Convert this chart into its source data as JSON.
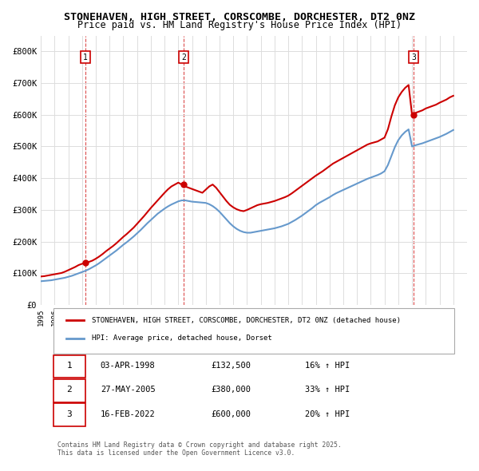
{
  "title": "STONEHAVEN, HIGH STREET, CORSCOMBE, DORCHESTER, DT2 0NZ",
  "subtitle": "Price paid vs. HM Land Registry's House Price Index (HPI)",
  "ylabel": "",
  "xlim_start": 1995.0,
  "xlim_end": 2026.0,
  "ylim_min": 0,
  "ylim_max": 850000,
  "yticks": [
    0,
    100000,
    200000,
    300000,
    400000,
    500000,
    600000,
    700000,
    800000
  ],
  "ytick_labels": [
    "£0",
    "£100K",
    "£200K",
    "£300K",
    "£400K",
    "£500K",
    "£600K",
    "£700K",
    "£800K"
  ],
  "red_color": "#cc0000",
  "blue_color": "#6699cc",
  "grid_color": "#dddddd",
  "bg_color": "#ffffff",
  "sale_color": "#cc0000",
  "sale_dates": [
    1998.25,
    2005.4,
    2022.12
  ],
  "sale_prices": [
    132500,
    380000,
    600000
  ],
  "sale_labels": [
    "1",
    "2",
    "3"
  ],
  "vline_color": "#cc0000",
  "legend_label_red": "STONEHAVEN, HIGH STREET, CORSCOMBE, DORCHESTER, DT2 0NZ (detached house)",
  "legend_label_blue": "HPI: Average price, detached house, Dorset",
  "table_rows": [
    {
      "num": "1",
      "date": "03-APR-1998",
      "price": "£132,500",
      "hpi": "16% ↑ HPI"
    },
    {
      "num": "2",
      "date": "27-MAY-2005",
      "price": "£380,000",
      "hpi": "33% ↑ HPI"
    },
    {
      "num": "3",
      "date": "16-FEB-2022",
      "price": "£600,000",
      "hpi": "20% ↑ HPI"
    }
  ],
  "footnote": "Contains HM Land Registry data © Crown copyright and database right 2025.\nThis data is licensed under the Open Government Licence v3.0.",
  "red_x": [
    1995.0,
    1995.25,
    1995.5,
    1995.75,
    1996.0,
    1996.25,
    1996.5,
    1996.75,
    1997.0,
    1997.25,
    1997.5,
    1997.75,
    1998.0,
    1998.25,
    1998.5,
    1998.75,
    1999.0,
    1999.25,
    1999.5,
    1999.75,
    2000.0,
    2000.25,
    2000.5,
    2000.75,
    2001.0,
    2001.25,
    2001.5,
    2001.75,
    2002.0,
    2002.25,
    2002.5,
    2002.75,
    2003.0,
    2003.25,
    2003.5,
    2003.75,
    2004.0,
    2004.25,
    2004.5,
    2004.75,
    2005.0,
    2005.25,
    2005.5,
    2005.75,
    2006.0,
    2006.25,
    2006.5,
    2006.75,
    2007.0,
    2007.25,
    2007.5,
    2007.75,
    2008.0,
    2008.25,
    2008.5,
    2008.75,
    2009.0,
    2009.25,
    2009.5,
    2009.75,
    2010.0,
    2010.25,
    2010.5,
    2010.75,
    2011.0,
    2011.25,
    2011.5,
    2011.75,
    2012.0,
    2012.25,
    2012.5,
    2012.75,
    2013.0,
    2013.25,
    2013.5,
    2013.75,
    2014.0,
    2014.25,
    2014.5,
    2014.75,
    2015.0,
    2015.25,
    2015.5,
    2015.75,
    2016.0,
    2016.25,
    2016.5,
    2016.75,
    2017.0,
    2017.25,
    2017.5,
    2017.75,
    2018.0,
    2018.25,
    2018.5,
    2018.75,
    2019.0,
    2019.25,
    2019.5,
    2019.75,
    2020.0,
    2020.25,
    2020.5,
    2020.75,
    2021.0,
    2021.25,
    2021.5,
    2021.75,
    2022.0,
    2022.25,
    2022.5,
    2022.75,
    2023.0,
    2023.25,
    2023.5,
    2023.75,
    2024.0,
    2024.25,
    2024.5,
    2024.75,
    2025.0
  ],
  "red_y": [
    90000,
    91000,
    93000,
    95000,
    97000,
    99000,
    101000,
    105000,
    110000,
    115000,
    120000,
    126000,
    130000,
    132500,
    136000,
    140000,
    146000,
    153000,
    161000,
    170000,
    178000,
    186000,
    195000,
    205000,
    215000,
    224000,
    234000,
    244000,
    256000,
    268000,
    280000,
    293000,
    306000,
    318000,
    330000,
    342000,
    354000,
    365000,
    374000,
    380000,
    386000,
    380000,
    374000,
    370000,
    366000,
    362000,
    358000,
    354000,
    364000,
    374000,
    380000,
    370000,
    356000,
    342000,
    328000,
    316000,
    308000,
    302000,
    298000,
    296000,
    300000,
    305000,
    310000,
    315000,
    318000,
    320000,
    322000,
    325000,
    328000,
    332000,
    336000,
    340000,
    345000,
    352000,
    360000,
    368000,
    376000,
    384000,
    392000,
    400000,
    408000,
    415000,
    422000,
    430000,
    438000,
    446000,
    452000,
    458000,
    464000,
    470000,
    476000,
    482000,
    488000,
    494000,
    500000,
    506000,
    510000,
    513000,
    516000,
    522000,
    528000,
    555000,
    595000,
    630000,
    655000,
    672000,
    685000,
    694000,
    600000,
    606000,
    610000,
    614000,
    620000,
    624000,
    628000,
    632000,
    638000,
    643000,
    648000,
    655000,
    660000
  ],
  "blue_x": [
    1995.0,
    1995.25,
    1995.5,
    1995.75,
    1996.0,
    1996.25,
    1996.5,
    1996.75,
    1997.0,
    1997.25,
    1997.5,
    1997.75,
    1998.0,
    1998.25,
    1998.5,
    1998.75,
    1999.0,
    1999.25,
    1999.5,
    1999.75,
    2000.0,
    2000.25,
    2000.5,
    2000.75,
    2001.0,
    2001.25,
    2001.5,
    2001.75,
    2002.0,
    2002.25,
    2002.5,
    2002.75,
    2003.0,
    2003.25,
    2003.5,
    2003.75,
    2004.0,
    2004.25,
    2004.5,
    2004.75,
    2005.0,
    2005.25,
    2005.5,
    2005.75,
    2006.0,
    2006.25,
    2006.5,
    2006.75,
    2007.0,
    2007.25,
    2007.5,
    2007.75,
    2008.0,
    2008.25,
    2008.5,
    2008.75,
    2009.0,
    2009.25,
    2009.5,
    2009.75,
    2010.0,
    2010.25,
    2010.5,
    2010.75,
    2011.0,
    2011.25,
    2011.5,
    2011.75,
    2012.0,
    2012.25,
    2012.5,
    2012.75,
    2013.0,
    2013.25,
    2013.5,
    2013.75,
    2014.0,
    2014.25,
    2014.5,
    2014.75,
    2015.0,
    2015.25,
    2015.5,
    2015.75,
    2016.0,
    2016.25,
    2016.5,
    2016.75,
    2017.0,
    2017.25,
    2017.5,
    2017.75,
    2018.0,
    2018.25,
    2018.5,
    2018.75,
    2019.0,
    2019.25,
    2019.5,
    2019.75,
    2020.0,
    2020.25,
    2020.5,
    2020.75,
    2021.0,
    2021.25,
    2021.5,
    2021.75,
    2022.0,
    2022.25,
    2022.5,
    2022.75,
    2023.0,
    2023.25,
    2023.5,
    2023.75,
    2024.0,
    2024.25,
    2024.5,
    2024.75,
    2025.0
  ],
  "blue_y": [
    75000,
    76000,
    77000,
    78000,
    80000,
    82000,
    84000,
    86000,
    89000,
    92000,
    96000,
    100000,
    104000,
    108000,
    113000,
    119000,
    125000,
    132000,
    140000,
    148000,
    156000,
    164000,
    172000,
    181000,
    190000,
    198000,
    207000,
    216000,
    226000,
    236000,
    247000,
    258000,
    268000,
    278000,
    288000,
    296000,
    304000,
    311000,
    317000,
    322000,
    327000,
    330000,
    330000,
    328000,
    326000,
    325000,
    324000,
    323000,
    322000,
    318000,
    312000,
    304000,
    294000,
    282000,
    270000,
    258000,
    248000,
    240000,
    234000,
    230000,
    228000,
    228000,
    230000,
    232000,
    234000,
    236000,
    238000,
    240000,
    242000,
    245000,
    248000,
    252000,
    256000,
    262000,
    268000,
    275000,
    282000,
    290000,
    298000,
    306000,
    315000,
    322000,
    328000,
    334000,
    340000,
    347000,
    353000,
    358000,
    363000,
    368000,
    373000,
    378000,
    383000,
    388000,
    393000,
    398000,
    402000,
    406000,
    410000,
    415000,
    422000,
    442000,
    470000,
    498000,
    520000,
    535000,
    546000,
    554000,
    500000,
    504000,
    507000,
    510000,
    514000,
    518000,
    522000,
    526000,
    530000,
    535000,
    540000,
    546000,
    552000
  ]
}
